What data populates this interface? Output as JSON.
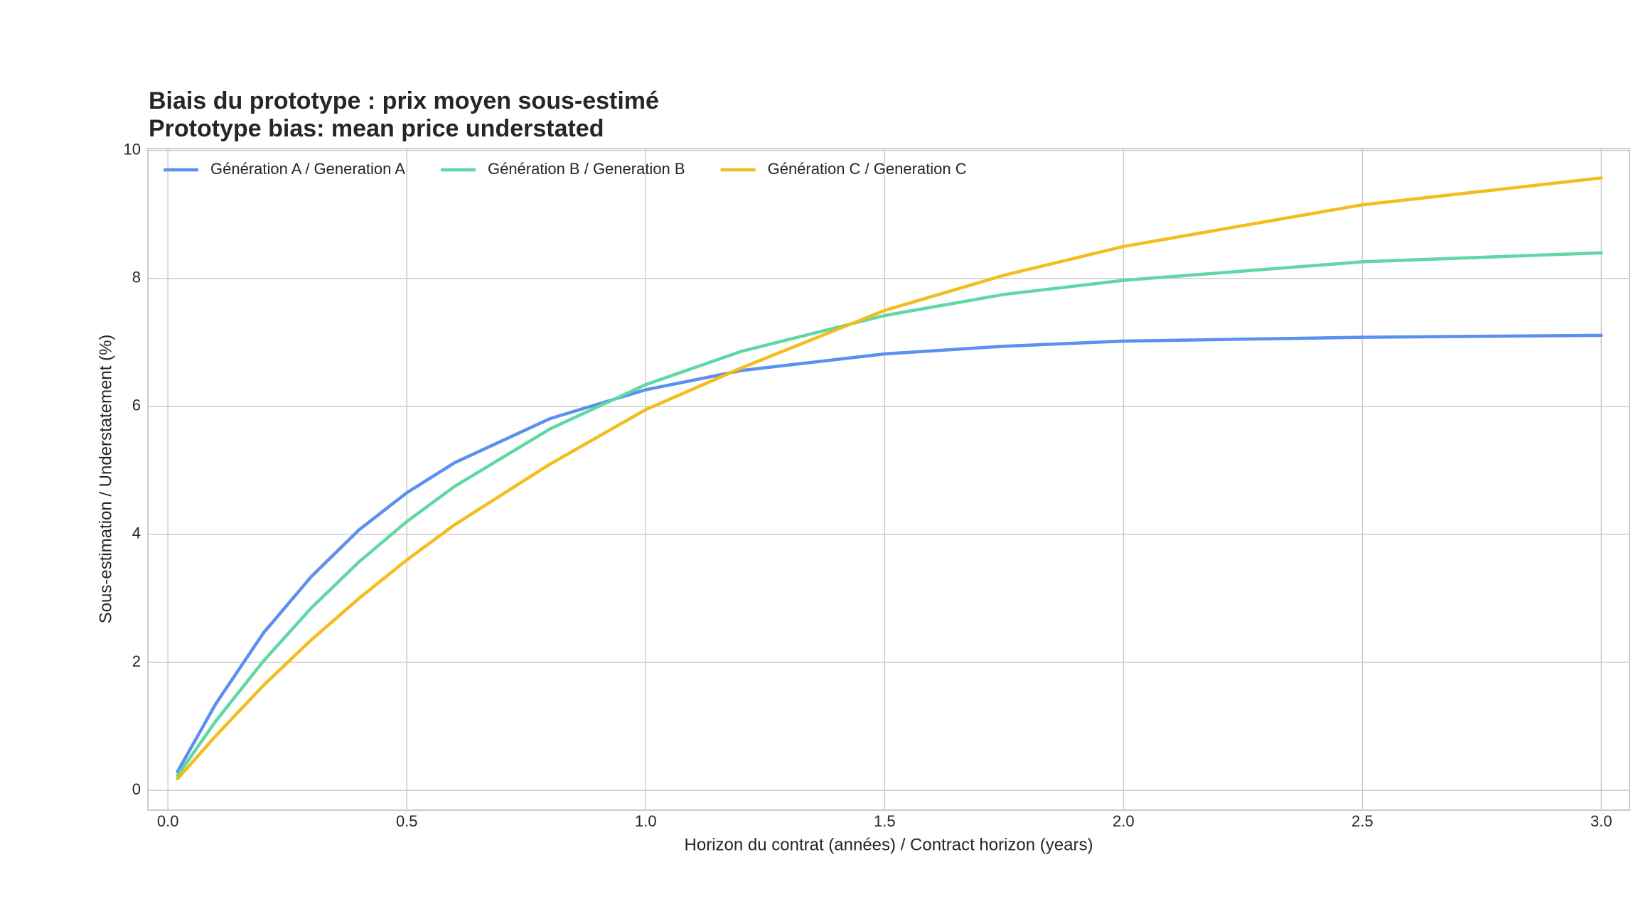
{
  "chart_data": {
    "type": "line",
    "title": [
      "Biais du prototype : prix moyen sous-estimé",
      "Prototype bias: mean price understated"
    ],
    "x_label": "Horizon du contrat (années) / Contract horizon (years)",
    "y_label": "Sous-estimation / Understatement (%)",
    "x": [
      0.02,
      0.1,
      0.2,
      0.3,
      0.4,
      0.5,
      0.6,
      0.8,
      1.0,
      1.2,
      1.5,
      1.75,
      2.0,
      2.5,
      3.0
    ],
    "series": [
      {
        "name": "Génération A / Generation A",
        "color": "#5b8ff0",
        "values": [
          0.29,
          1.35,
          2.46,
          3.34,
          4.07,
          4.65,
          5.12,
          5.81,
          6.26,
          6.56,
          6.82,
          6.94,
          7.02,
          7.08,
          7.11
        ]
      },
      {
        "name": "Génération B / Generation B",
        "color": "#5fd8a4",
        "values": [
          0.23,
          1.08,
          2.02,
          2.85,
          3.57,
          4.2,
          4.75,
          5.65,
          6.34,
          6.86,
          7.42,
          7.75,
          7.97,
          8.26,
          8.4
        ]
      },
      {
        "name": "Génération C / Generation C",
        "color": "#f2bd1d",
        "values": [
          0.18,
          0.85,
          1.64,
          2.35,
          3.0,
          3.6,
          4.15,
          5.1,
          5.95,
          6.6,
          7.5,
          8.05,
          8.5,
          9.15,
          9.57
        ]
      }
    ],
    "xlim": [
      -0.042,
      3.059
    ],
    "ylim": [
      -0.31,
      10.03
    ],
    "xticks": [
      {
        "value": 0,
        "label": "0.0"
      },
      0.5,
      {
        "value": 1,
        "label": "1.0"
      },
      1.5,
      {
        "value": 2,
        "label": "2.0"
      },
      2.5,
      {
        "value": 3,
        "label": "3.0"
      }
    ],
    "yticks": [
      0,
      2,
      4,
      6,
      8,
      10
    ],
    "grid": true,
    "legend": "top-left"
  }
}
